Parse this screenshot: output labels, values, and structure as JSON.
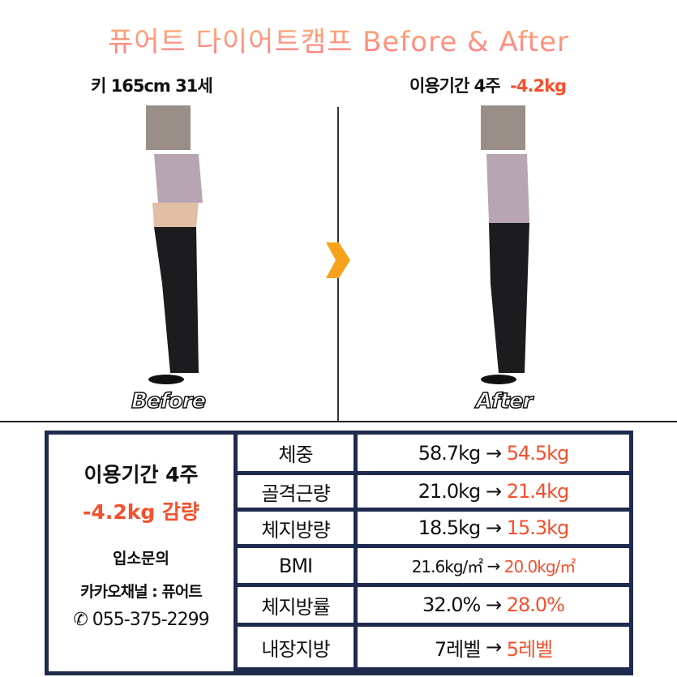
{
  "title": "퓨어트 다이어트캠프 Before & After",
  "before": {
    "caption": "키 165cm 31세",
    "label": "Before"
  },
  "after": {
    "caption": "이용기간 4주",
    "caption_loss": "-4.2kg",
    "label": "After"
  },
  "colors": {
    "accent": "#f4502e",
    "border": "#1f2a4f",
    "arrow": "#f7a21b"
  },
  "summary": {
    "period": "이용기간 4주",
    "loss": "-4.2kg 감량",
    "inquiry": "입소문의",
    "kakao": "카카오채널 : 퓨어트",
    "phone_icon": "phone-icon",
    "phone": "055-375-2299"
  },
  "rows": [
    {
      "label": "체중",
      "before": "58.7kg",
      "arrow": "→",
      "after": "54.5kg"
    },
    {
      "label": "골격근량",
      "before": "21.0kg",
      "arrow": "→",
      "after": "21.4kg"
    },
    {
      "label": "체지방량",
      "before": "18.5kg",
      "arrow": "→",
      "after": "15.3kg"
    },
    {
      "label": "BMI",
      "before": "21.6kg/㎡",
      "arrow": "→",
      "after": "20.0kg/㎡"
    },
    {
      "label": "체지방률",
      "before": "32.0%",
      "arrow": "→",
      "after": "28.0%"
    },
    {
      "label": "내장지방",
      "before": "7레벨",
      "arrow": "→",
      "after": "5레벨"
    }
  ]
}
